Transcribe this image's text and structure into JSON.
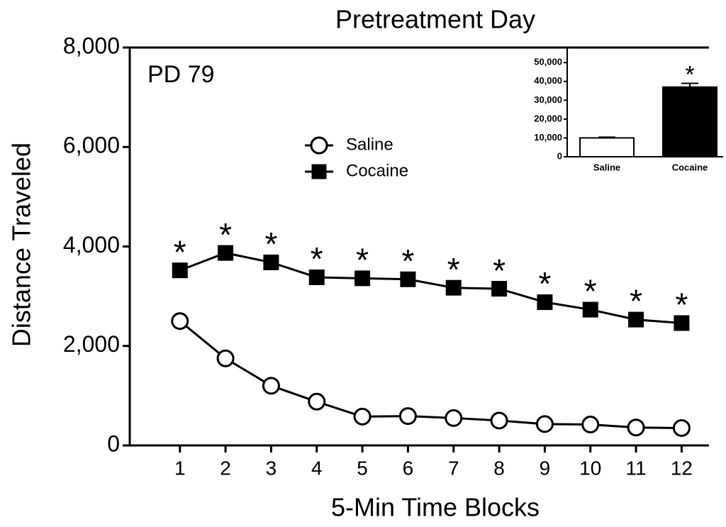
{
  "chart_data": [
    {
      "type": "line",
      "title": "Pretreatment Day",
      "annotation": "PD 79",
      "xlabel": "5-Min Time Blocks",
      "ylabel": "Distance Traveled",
      "x": [
        1,
        2,
        3,
        4,
        5,
        6,
        7,
        8,
        9,
        10,
        11,
        12
      ],
      "xlim": [
        -0.1,
        12.6
      ],
      "xticks": [
        1,
        2,
        3,
        4,
        5,
        6,
        7,
        8,
        9,
        10,
        11,
        12
      ],
      "ylim": [
        0,
        8000
      ],
      "yticks": [
        0,
        {
          "value": 2000,
          "label": "2,000"
        },
        {
          "value": 4000,
          "label": "4,000"
        },
        {
          "value": 6000,
          "label": "6,000"
        },
        {
          "value": 8000,
          "label": "8,000"
        }
      ],
      "series": [
        {
          "name": "Saline",
          "color": "#000000",
          "fill": "#ffffff",
          "marker": "circle",
          "values": [
            2500,
            1750,
            1200,
            880,
            580,
            590,
            550,
            500,
            430,
            420,
            360,
            350
          ]
        },
        {
          "name": "Cocaine",
          "color": "#000000",
          "fill": "#000000",
          "marker": "square",
          "values": [
            3520,
            3870,
            3680,
            3380,
            3360,
            3340,
            3170,
            3150,
            2880,
            2730,
            2530,
            2460
          ],
          "errors": [
            60,
            70,
            70,
            60,
            60,
            60,
            60,
            60,
            60,
            60,
            60,
            50
          ],
          "significance": [
            "*",
            "*",
            "*",
            "*",
            "*",
            "*",
            "*",
            "*",
            "*",
            "*",
            "*",
            "*"
          ]
        }
      ]
    },
    {
      "type": "bar",
      "categories": [
        "Saline",
        "Cocaine"
      ],
      "values": [
        10000,
        37000
      ],
      "errors": [
        400,
        2000
      ],
      "colors": [
        "#ffffff",
        "#000000"
      ],
      "significance": [
        null,
        "*"
      ],
      "ylim": [
        0,
        58000
      ],
      "yticks": [
        0,
        {
          "value": 10000,
          "label": "10,000"
        },
        {
          "value": 20000,
          "label": "20,000"
        },
        {
          "value": 30000,
          "label": "30,000"
        },
        {
          "value": 40000,
          "label": "40,000"
        },
        {
          "value": 50000,
          "label": "50,000"
        }
      ]
    }
  ]
}
